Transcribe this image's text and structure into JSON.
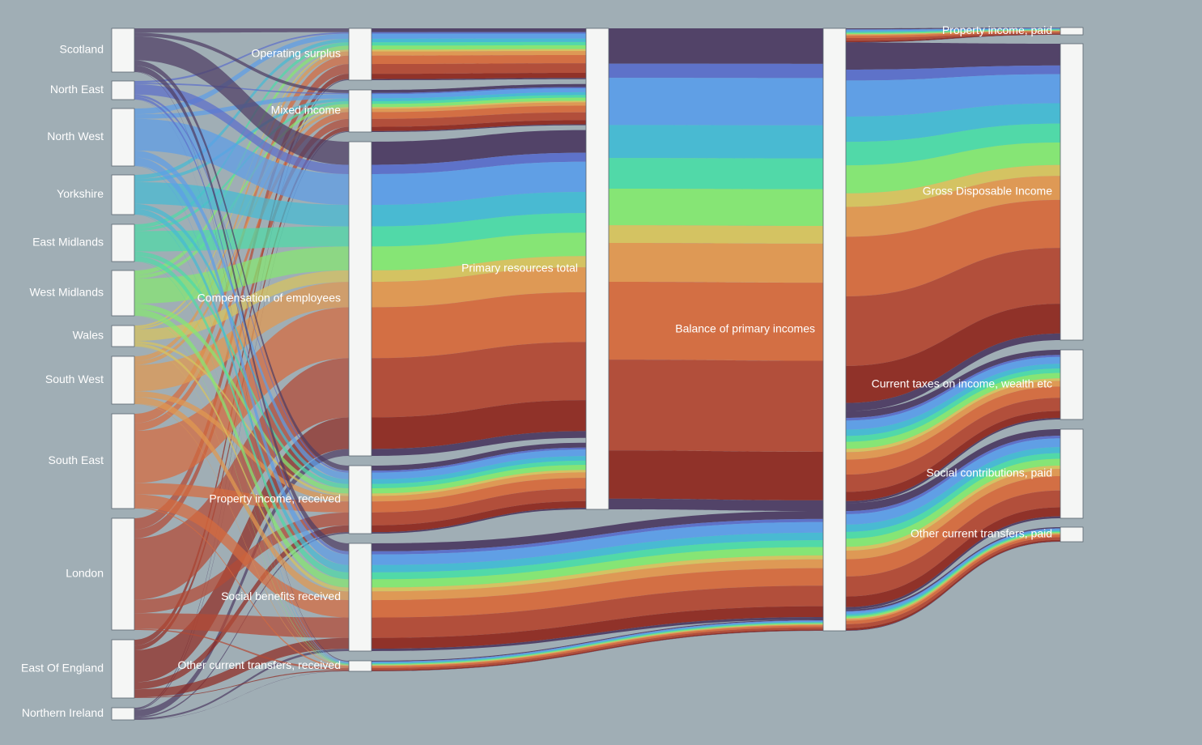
{
  "chart_data": {
    "type": "sankey",
    "colors": {
      "background": "#a0aeb5",
      "node_fill": "#f5f6f5",
      "region_colors": [
        "#4e3d64",
        "#5b6fca",
        "#5d9ee8",
        "#45bbd4",
        "#4ddba8",
        "#85e872",
        "#d7c45e",
        "#e19850",
        "#d66b3e",
        "#b34a35",
        "#8f2b22"
      ]
    },
    "regions": [
      "Scotland",
      "North East",
      "North West",
      "Yorkshire",
      "East Midlands",
      "West Midlands",
      "Wales",
      "South West",
      "South East",
      "London",
      "East Of England",
      "Northern Ireland"
    ],
    "income_types": [
      "Operating surplus",
      "Mixed income",
      "Compensation of employees",
      "Property income, received",
      "Social benefits received",
      "Other current transfers, received"
    ],
    "aggregates": [
      "Primary resources total",
      "Balance of primary incomes"
    ],
    "uses": [
      "Property income, paid",
      "Gross Disposable Income",
      "Current taxes on income, wealth etc",
      "Social contributions, paid",
      "Other current transfers, paid"
    ],
    "region_totals": [
      30,
      12,
      40,
      28,
      26,
      31,
      15,
      33,
      66,
      77,
      41,
      9
    ],
    "income_type_shares": [
      0.1,
      0.08,
      0.55,
      0.12,
      0.14,
      0.01
    ],
    "use_shares": [
      0.02,
      0.52,
      0.13,
      0.15,
      0.03
    ]
  }
}
